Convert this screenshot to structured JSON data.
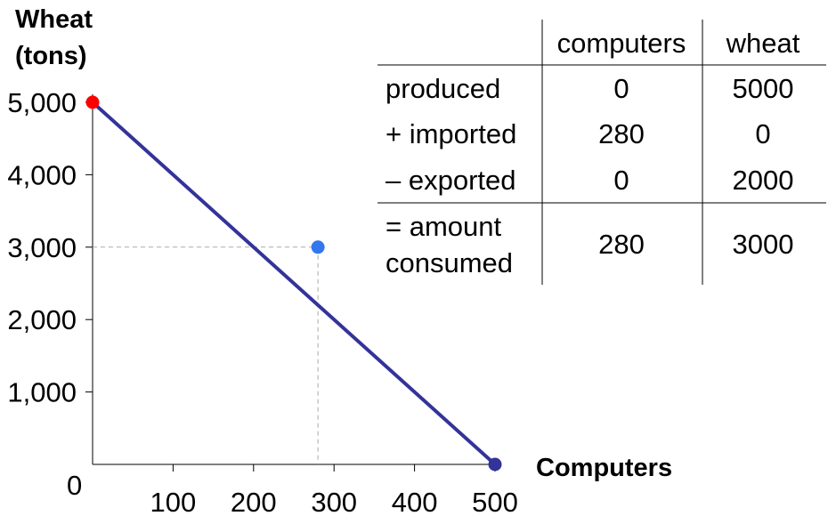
{
  "chart_data": {
    "type": "line",
    "xlabel": "Computers",
    "ylabel_lines": [
      "Wheat",
      "(tons)"
    ],
    "xlim": [
      0,
      500
    ],
    "ylim": [
      0,
      5000
    ],
    "x_ticks": [
      100,
      200,
      300,
      400,
      500
    ],
    "x_tick_labels": [
      "100",
      "200",
      "300",
      "400",
      "500"
    ],
    "y_ticks": [
      1000,
      2000,
      3000,
      4000,
      5000
    ],
    "y_tick_labels": [
      "1,000",
      "2,000",
      "3,000",
      "4,000",
      "5,000"
    ],
    "origin_label": "0",
    "grid": false,
    "series": [
      {
        "points": [
          [
            0,
            5000
          ],
          [
            500,
            0
          ]
        ],
        "color": "#333399"
      }
    ],
    "points": [
      {
        "x": 0,
        "y": 5000,
        "color": "#ff0000"
      },
      {
        "x": 500,
        "y": 0,
        "color": "#333399"
      },
      {
        "x": 280,
        "y": 3000,
        "color": "#3377ee"
      }
    ],
    "guide_point": {
      "x": 280,
      "y": 3000
    }
  },
  "table": {
    "columns": [
      "computers",
      "wheat"
    ],
    "rows": [
      {
        "label": [
          "produced"
        ],
        "values": [
          "0",
          "5000"
        ]
      },
      {
        "label": [
          "+ imported"
        ],
        "values": [
          "280",
          "0"
        ]
      },
      {
        "label": [
          "– exported"
        ],
        "values": [
          "0",
          "2000"
        ]
      },
      {
        "label": [
          "= amount",
          "consumed"
        ],
        "values": [
          "280",
          "3000"
        ]
      }
    ]
  }
}
